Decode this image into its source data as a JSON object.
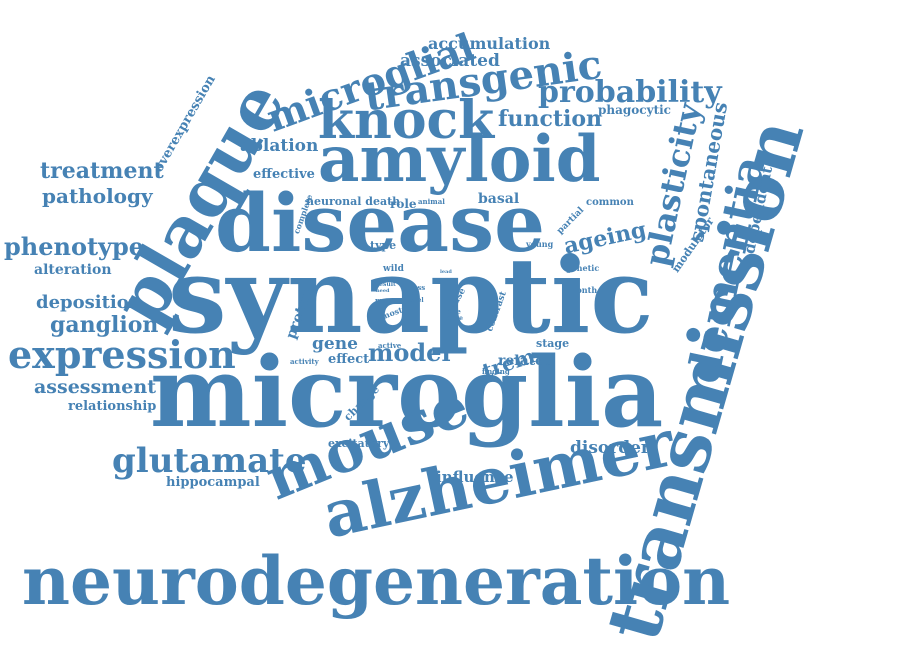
{
  "palette": {
    "word_color": "#4682b4",
    "background": "#ffffff"
  },
  "words": {
    "synaptic": "synaptic",
    "microglia": "microglia",
    "transmission": "transmission",
    "neurodegeneration": "neurodegeneration",
    "alzheimer": "alzheimer",
    "disease": "disease",
    "amyloid": "amyloid",
    "plaque": "plaque",
    "mouse": "mouse",
    "dementia": "dementia",
    "knock": "knock",
    "transgenic": "transgenic",
    "microglial": "microglial",
    "expression": "expression",
    "glutamate": "glutamate",
    "plasticity": "plasticity",
    "probability": "probability",
    "spontaneous": "spontaneous",
    "phenotype": "phenotype",
    "treatment": "treatment",
    "pathology": "pathology",
    "ganglion": "ganglion",
    "deposition": "deposition",
    "assessment": "assessment",
    "model": "model",
    "function": "function",
    "ageing": "ageing",
    "accumulation": "accumulation",
    "associated": "associated",
    "overexpression": "overexpression",
    "ablation": "ablation",
    "effective": "effective",
    "alteration": "alteration",
    "relationship": "relationship",
    "hippocampal": "hippocampal",
    "influence": "influence",
    "disorder": "disorder",
    "excitatory": "excitatory",
    "gene": "gene",
    "effect": "effect",
    "trem": "trem",
    "related": "related",
    "stage": "stage",
    "basal": "basal",
    "role": "role",
    "neuronal_death": "neuronal death",
    "type": "type",
    "protein": "protein",
    "change": "change",
    "phagocytic": "phagocytic",
    "dependent": "dependent",
    "modulator": "modulator",
    "partial": "partial",
    "common": "common",
    "young": "young",
    "genetic": "genetic",
    "month": "month",
    "complete": "complete",
    "animal": "animal",
    "wild": "wild",
    "contrast": "contrast",
    "cause": "cause",
    "finding": "finding",
    "active": "active",
    "activity": "activity",
    "most": "most",
    "more": "more",
    "result": "result",
    "loss": "loss",
    "level": "level",
    "line": "line",
    "drive": "drive",
    "lead": "lead",
    "need": "need",
    "its": "its"
  }
}
